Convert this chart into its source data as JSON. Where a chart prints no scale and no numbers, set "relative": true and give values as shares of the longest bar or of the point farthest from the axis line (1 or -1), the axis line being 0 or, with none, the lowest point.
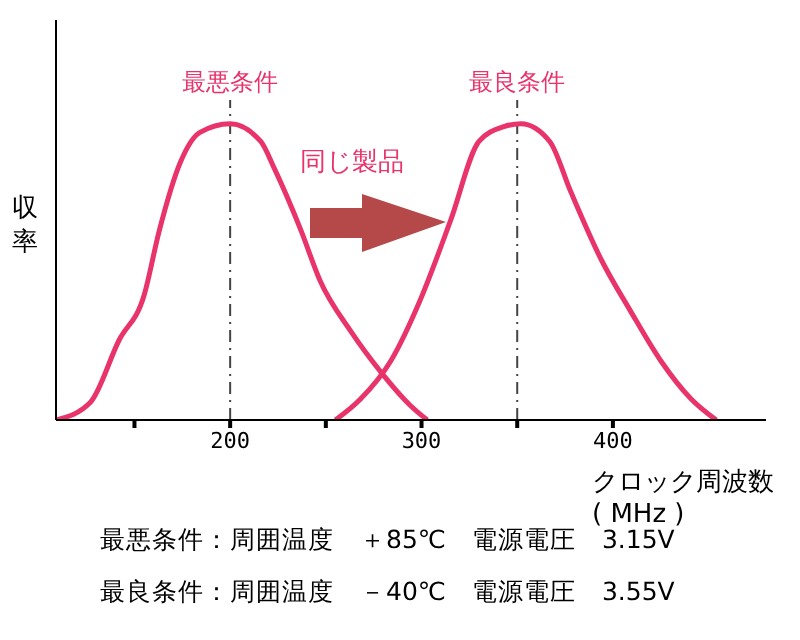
{
  "chart_data": {
    "type": "line",
    "relative": true,
    "xlabel": "クロック周波数\n( MHz )",
    "ylabel": "収率",
    "xlim": [
      109,
      480
    ],
    "xticks": [
      {
        "value": 150,
        "label": null
      },
      200,
      {
        "value": 250,
        "label": null
      },
      300,
      {
        "value": 350,
        "label": null
      },
      400
    ],
    "series": [
      {
        "color": "#e8336b",
        "x": [
          109,
          127,
          142,
          155,
          163,
          174,
          184,
          200,
          216,
          223,
          237,
          247,
          263,
          279,
          294,
          303
        ],
        "values": [
          0,
          0.06,
          0.27,
          0.42,
          0.64,
          0.87,
          0.97,
          1,
          0.94,
          0.85,
          0.64,
          0.47,
          0.3,
          0.16,
          0.05,
          0
        ]
      },
      {
        "color": "#e8336b",
        "x": [
          255,
          268,
          284,
          299,
          315,
          330,
          343,
          352,
          367,
          378,
          394,
          409,
          425,
          441,
          454
        ],
        "values": [
          0,
          0.07,
          0.2,
          0.4,
          0.67,
          0.94,
          0.99,
          1,
          0.94,
          0.77,
          0.54,
          0.37,
          0.2,
          0.07,
          0
        ]
      }
    ],
    "ref_lines": [
      {
        "axis": "x",
        "value": 200,
        "label": "最悪条件",
        "color": "#444444",
        "line_style": "dashdot"
      },
      {
        "axis": "x",
        "value": 350,
        "label": "最良条件",
        "color": "#444444",
        "line_style": "dashdot"
      }
    ],
    "annotations": [
      "同じ製品",
      "最悪条件：周囲温度　＋85℃　電源電圧　3.15V",
      "最良条件：周囲温度　－40℃　電源電圧　3.55V"
    ],
    "grid": false,
    "legend": false,
    "marker": "none",
    "line_style": "solid"
  }
}
